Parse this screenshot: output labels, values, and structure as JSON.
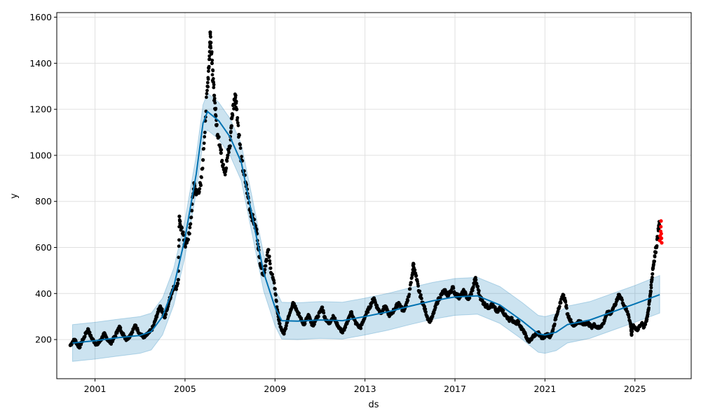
{
  "chart_data": {
    "type": "scatter",
    "title": "",
    "xlabel": "ds",
    "ylabel": "y",
    "xlim": [
      1999.3,
      2027.5
    ],
    "ylim": [
      30,
      1620
    ],
    "grid": true,
    "x_ticks": [
      {
        "value": 2001,
        "label": "2001"
      },
      {
        "value": 2005,
        "label": "2005"
      },
      {
        "value": 2009,
        "label": "2009"
      },
      {
        "value": 2013,
        "label": "2013"
      },
      {
        "value": 2017,
        "label": "2017"
      },
      {
        "value": 2021,
        "label": "2021"
      },
      {
        "value": 2025,
        "label": "2025"
      }
    ],
    "y_ticks": [
      {
        "value": 200,
        "label": "200"
      },
      {
        "value": 400,
        "label": "400"
      },
      {
        "value": 600,
        "label": "600"
      },
      {
        "value": 800,
        "label": "800"
      },
      {
        "value": 1000,
        "label": "1000"
      },
      {
        "value": 1200,
        "label": "1200"
      },
      {
        "value": 1400,
        "label": "1400"
      },
      {
        "value": 1600,
        "label": "1600"
      }
    ],
    "colors": {
      "observed": "#000000",
      "recent": "#ff0000",
      "forecast_line": "#0072B2",
      "interval_fill": "#0072B2"
    },
    "forecast": [
      {
        "x": 2000.0,
        "yhat": 185,
        "lower": 105,
        "upper": 265
      },
      {
        "x": 2001.0,
        "yhat": 195,
        "lower": 115,
        "upper": 275
      },
      {
        "x": 2002.0,
        "yhat": 208,
        "lower": 128,
        "upper": 288
      },
      {
        "x": 2003.0,
        "yhat": 218,
        "lower": 140,
        "upper": 300
      },
      {
        "x": 2003.5,
        "yhat": 235,
        "lower": 155,
        "upper": 315
      },
      {
        "x": 2004.0,
        "yhat": 300,
        "lower": 220,
        "upper": 380
      },
      {
        "x": 2004.5,
        "yhat": 430,
        "lower": 350,
        "upper": 510
      },
      {
        "x": 2005.0,
        "yhat": 640,
        "lower": 560,
        "upper": 720
      },
      {
        "x": 2005.5,
        "yhat": 920,
        "lower": 840,
        "upper": 1000
      },
      {
        "x": 2005.8,
        "yhat": 1140,
        "lower": 1060,
        "upper": 1220
      },
      {
        "x": 2006.0,
        "yhat": 1190,
        "lower": 1110,
        "upper": 1270
      },
      {
        "x": 2006.5,
        "yhat": 1150,
        "lower": 1070,
        "upper": 1230
      },
      {
        "x": 2007.0,
        "yhat": 1080,
        "lower": 1000,
        "upper": 1160
      },
      {
        "x": 2007.5,
        "yhat": 970,
        "lower": 890,
        "upper": 1050
      },
      {
        "x": 2008.0,
        "yhat": 730,
        "lower": 650,
        "upper": 810
      },
      {
        "x": 2008.5,
        "yhat": 490,
        "lower": 410,
        "upper": 570
      },
      {
        "x": 2009.0,
        "yhat": 340,
        "lower": 260,
        "upper": 420
      },
      {
        "x": 2009.3,
        "yhat": 282,
        "lower": 202,
        "upper": 362
      },
      {
        "x": 2010.0,
        "yhat": 280,
        "lower": 200,
        "upper": 360
      },
      {
        "x": 2011.0,
        "yhat": 285,
        "lower": 205,
        "upper": 365
      },
      {
        "x": 2012.0,
        "yhat": 282,
        "lower": 202,
        "upper": 362
      },
      {
        "x": 2013.0,
        "yhat": 300,
        "lower": 220,
        "upper": 380
      },
      {
        "x": 2014.0,
        "yhat": 320,
        "lower": 240,
        "upper": 400
      },
      {
        "x": 2015.0,
        "yhat": 345,
        "lower": 265,
        "upper": 425
      },
      {
        "x": 2016.0,
        "yhat": 368,
        "lower": 288,
        "upper": 448
      },
      {
        "x": 2017.0,
        "yhat": 385,
        "lower": 305,
        "upper": 465
      },
      {
        "x": 2018.0,
        "yhat": 390,
        "lower": 310,
        "upper": 470
      },
      {
        "x": 2019.0,
        "yhat": 350,
        "lower": 270,
        "upper": 430
      },
      {
        "x": 2020.0,
        "yhat": 280,
        "lower": 200,
        "upper": 360
      },
      {
        "x": 2020.7,
        "yhat": 225,
        "lower": 145,
        "upper": 305
      },
      {
        "x": 2021.0,
        "yhat": 220,
        "lower": 140,
        "upper": 300
      },
      {
        "x": 2021.5,
        "yhat": 232,
        "lower": 152,
        "upper": 312
      },
      {
        "x": 2022.0,
        "yhat": 265,
        "lower": 185,
        "upper": 345
      },
      {
        "x": 2023.0,
        "yhat": 285,
        "lower": 205,
        "upper": 365
      },
      {
        "x": 2024.0,
        "yhat": 320,
        "lower": 240,
        "upper": 400
      },
      {
        "x": 2025.0,
        "yhat": 355,
        "lower": 275,
        "upper": 435
      },
      {
        "x": 2026.1,
        "yhat": 395,
        "lower": 315,
        "upper": 478
      }
    ],
    "observed": [
      [
        1999.9,
        175
      ],
      [
        2000.0,
        190
      ],
      [
        2000.1,
        200
      ],
      [
        2000.2,
        182
      ],
      [
        2000.3,
        165
      ],
      [
        2000.4,
        188
      ],
      [
        2000.5,
        205
      ],
      [
        2000.6,
        230
      ],
      [
        2000.7,
        245
      ],
      [
        2000.8,
        215
      ],
      [
        2000.9,
        200
      ],
      [
        2001.0,
        185
      ],
      [
        2001.1,
        178
      ],
      [
        2001.2,
        190
      ],
      [
        2001.3,
        205
      ],
      [
        2001.4,
        225
      ],
      [
        2001.5,
        210
      ],
      [
        2001.6,
        195
      ],
      [
        2001.7,
        185
      ],
      [
        2001.8,
        200
      ],
      [
        2001.9,
        215
      ],
      [
        2002.0,
        240
      ],
      [
        2002.1,
        255
      ],
      [
        2002.2,
        230
      ],
      [
        2002.3,
        215
      ],
      [
        2002.4,
        200
      ],
      [
        2002.5,
        210
      ],
      [
        2002.6,
        225
      ],
      [
        2002.7,
        245
      ],
      [
        2002.8,
        262
      ],
      [
        2002.9,
        240
      ],
      [
        2003.0,
        225
      ],
      [
        2003.1,
        215
      ],
      [
        2003.2,
        210
      ],
      [
        2003.3,
        220
      ],
      [
        2003.4,
        230
      ],
      [
        2003.5,
        240
      ],
      [
        2003.6,
        260
      ],
      [
        2003.7,
        290
      ],
      [
        2003.8,
        320
      ],
      [
        2003.9,
        345
      ],
      [
        2004.0,
        320
      ],
      [
        2004.1,
        295
      ],
      [
        2004.2,
        330
      ],
      [
        2004.3,
        370
      ],
      [
        2004.4,
        400
      ],
      [
        2004.5,
        430
      ],
      [
        2004.6,
        420
      ],
      [
        2004.7,
        460
      ],
      [
        2004.75,
        735
      ],
      [
        2004.8,
        690
      ],
      [
        2004.9,
        660
      ],
      [
        2005.0,
        610
      ],
      [
        2005.1,
        630
      ],
      [
        2005.2,
        660
      ],
      [
        2005.3,
        760
      ],
      [
        2005.4,
        880
      ],
      [
        2005.5,
        830
      ],
      [
        2005.6,
        850
      ],
      [
        2005.7,
        870
      ],
      [
        2005.8,
        980
      ],
      [
        2005.9,
        1150
      ],
      [
        2006.0,
        1300
      ],
      [
        2006.05,
        1380
      ],
      [
        2006.1,
        1450
      ],
      [
        2006.12,
        1535
      ],
      [
        2006.15,
        1490
      ],
      [
        2006.2,
        1400
      ],
      [
        2006.25,
        1320
      ],
      [
        2006.3,
        1260
      ],
      [
        2006.35,
        1200
      ],
      [
        2006.4,
        1130
      ],
      [
        2006.5,
        1080
      ],
      [
        2006.6,
        1010
      ],
      [
        2006.7,
        960
      ],
      [
        2006.8,
        930
      ],
      [
        2006.9,
        1000
      ],
      [
        2007.0,
        1040
      ],
      [
        2007.05,
        1120
      ],
      [
        2007.1,
        1180
      ],
      [
        2007.2,
        1240
      ],
      [
        2007.25,
        1260
      ],
      [
        2007.3,
        1200
      ],
      [
        2007.4,
        1090
      ],
      [
        2007.5,
        980
      ],
      [
        2007.6,
        930
      ],
      [
        2007.7,
        880
      ],
      [
        2007.8,
        820
      ],
      [
        2007.9,
        760
      ],
      [
        2008.0,
        730
      ],
      [
        2008.1,
        700
      ],
      [
        2008.2,
        660
      ],
      [
        2008.3,
        560
      ],
      [
        2008.4,
        510
      ],
      [
        2008.5,
        480
      ],
      [
        2008.6,
        540
      ],
      [
        2008.7,
        590
      ],
      [
        2008.8,
        510
      ],
      [
        2008.9,
        470
      ],
      [
        2009.0,
        420
      ],
      [
        2009.1,
        330
      ],
      [
        2009.15,
        300
      ],
      [
        2009.2,
        270
      ],
      [
        2009.3,
        240
      ],
      [
        2009.4,
        225
      ],
      [
        2009.5,
        260
      ],
      [
        2009.6,
        300
      ],
      [
        2009.7,
        330
      ],
      [
        2009.8,
        360
      ],
      [
        2009.9,
        345
      ],
      [
        2010.0,
        320
      ],
      [
        2010.1,
        300
      ],
      [
        2010.2,
        280
      ],
      [
        2010.3,
        265
      ],
      [
        2010.4,
        290
      ],
      [
        2010.5,
        305
      ],
      [
        2010.6,
        275
      ],
      [
        2010.7,
        260
      ],
      [
        2010.8,
        285
      ],
      [
        2010.9,
        300
      ],
      [
        2011.0,
        320
      ],
      [
        2011.1,
        340
      ],
      [
        2011.2,
        300
      ],
      [
        2011.3,
        280
      ],
      [
        2011.4,
        270
      ],
      [
        2011.5,
        285
      ],
      [
        2011.6,
        300
      ],
      [
        2011.7,
        280
      ],
      [
        2011.8,
        260
      ],
      [
        2011.9,
        245
      ],
      [
        2012.0,
        230
      ],
      [
        2012.1,
        250
      ],
      [
        2012.2,
        270
      ],
      [
        2012.3,
        300
      ],
      [
        2012.4,
        320
      ],
      [
        2012.5,
        290
      ],
      [
        2012.6,
        270
      ],
      [
        2012.7,
        260
      ],
      [
        2012.8,
        250
      ],
      [
        2012.9,
        275
      ],
      [
        2013.0,
        300
      ],
      [
        2013.1,
        320
      ],
      [
        2013.2,
        340
      ],
      [
        2013.3,
        360
      ],
      [
        2013.4,
        380
      ],
      [
        2013.5,
        350
      ],
      [
        2013.6,
        330
      ],
      [
        2013.7,
        315
      ],
      [
        2013.8,
        330
      ],
      [
        2013.9,
        345
      ],
      [
        2014.0,
        320
      ],
      [
        2014.1,
        305
      ],
      [
        2014.2,
        315
      ],
      [
        2014.3,
        330
      ],
      [
        2014.4,
        345
      ],
      [
        2014.5,
        360
      ],
      [
        2014.6,
        340
      ],
      [
        2014.7,
        325
      ],
      [
        2014.8,
        345
      ],
      [
        2014.9,
        370
      ],
      [
        2015.0,
        420
      ],
      [
        2015.1,
        480
      ],
      [
        2015.15,
        530
      ],
      [
        2015.2,
        500
      ],
      [
        2015.3,
        460
      ],
      [
        2015.4,
        410
      ],
      [
        2015.5,
        380
      ],
      [
        2015.6,
        350
      ],
      [
        2015.7,
        320
      ],
      [
        2015.8,
        290
      ],
      [
        2015.9,
        280
      ],
      [
        2016.0,
        300
      ],
      [
        2016.1,
        330
      ],
      [
        2016.2,
        360
      ],
      [
        2016.3,
        380
      ],
      [
        2016.4,
        395
      ],
      [
        2016.5,
        410
      ],
      [
        2016.6,
        405
      ],
      [
        2016.7,
        390
      ],
      [
        2016.8,
        410
      ],
      [
        2016.9,
        425
      ],
      [
        2017.0,
        400
      ],
      [
        2017.1,
        390
      ],
      [
        2017.2,
        385
      ],
      [
        2017.3,
        395
      ],
      [
        2017.4,
        410
      ],
      [
        2017.5,
        390
      ],
      [
        2017.6,
        375
      ],
      [
        2017.7,
        395
      ],
      [
        2017.8,
        425
      ],
      [
        2017.9,
        465
      ],
      [
        2018.0,
        430
      ],
      [
        2018.1,
        390
      ],
      [
        2018.2,
        370
      ],
      [
        2018.3,
        355
      ],
      [
        2018.4,
        345
      ],
      [
        2018.5,
        340
      ],
      [
        2018.6,
        350
      ],
      [
        2018.7,
        345
      ],
      [
        2018.8,
        330
      ],
      [
        2018.9,
        320
      ],
      [
        2019.0,
        340
      ],
      [
        2019.1,
        330
      ],
      [
        2019.2,
        310
      ],
      [
        2019.3,
        300
      ],
      [
        2019.4,
        285
      ],
      [
        2019.5,
        295
      ],
      [
        2019.6,
        275
      ],
      [
        2019.7,
        270
      ],
      [
        2019.8,
        280
      ],
      [
        2019.9,
        255
      ],
      [
        2020.0,
        245
      ],
      [
        2020.1,
        230
      ],
      [
        2020.2,
        205
      ],
      [
        2020.3,
        190
      ],
      [
        2020.4,
        200
      ],
      [
        2020.5,
        215
      ],
      [
        2020.6,
        225
      ],
      [
        2020.7,
        230
      ],
      [
        2020.8,
        215
      ],
      [
        2020.9,
        205
      ],
      [
        2021.0,
        215
      ],
      [
        2021.1,
        225
      ],
      [
        2021.2,
        210
      ],
      [
        2021.3,
        225
      ],
      [
        2021.4,
        260
      ],
      [
        2021.5,
        300
      ],
      [
        2021.6,
        335
      ],
      [
        2021.7,
        360
      ],
      [
        2021.8,
        395
      ],
      [
        2021.9,
        370
      ],
      [
        2022.0,
        310
      ],
      [
        2022.1,
        290
      ],
      [
        2022.2,
        270
      ],
      [
        2022.3,
        260
      ],
      [
        2022.4,
        270
      ],
      [
        2022.5,
        280
      ],
      [
        2022.6,
        275
      ],
      [
        2022.7,
        265
      ],
      [
        2022.8,
        270
      ],
      [
        2022.9,
        275
      ],
      [
        2023.0,
        260
      ],
      [
        2023.1,
        255
      ],
      [
        2023.2,
        265
      ],
      [
        2023.3,
        255
      ],
      [
        2023.4,
        250
      ],
      [
        2023.5,
        260
      ],
      [
        2023.6,
        270
      ],
      [
        2023.7,
        300
      ],
      [
        2023.8,
        320
      ],
      [
        2023.9,
        310
      ],
      [
        2024.0,
        330
      ],
      [
        2024.1,
        350
      ],
      [
        2024.2,
        370
      ],
      [
        2024.3,
        395
      ],
      [
        2024.4,
        380
      ],
      [
        2024.5,
        350
      ],
      [
        2024.6,
        330
      ],
      [
        2024.7,
        310
      ],
      [
        2024.8,
        270
      ],
      [
        2024.85,
        220
      ],
      [
        2024.9,
        260
      ],
      [
        2025.0,
        250
      ],
      [
        2025.1,
        240
      ],
      [
        2025.2,
        260
      ],
      [
        2025.3,
        270
      ],
      [
        2025.4,
        255
      ],
      [
        2025.5,
        280
      ],
      [
        2025.55,
        300
      ],
      [
        2025.6,
        330
      ],
      [
        2025.65,
        370
      ],
      [
        2025.7,
        410
      ],
      [
        2025.75,
        460
      ],
      [
        2025.8,
        510
      ],
      [
        2025.85,
        540
      ],
      [
        2025.9,
        580
      ],
      [
        2025.95,
        600
      ],
      [
        2026.0,
        640
      ],
      [
        2026.05,
        680
      ],
      [
        2026.08,
        700
      ]
    ],
    "recent": [
      [
        2026.1,
        630
      ],
      [
        2026.12,
        650
      ],
      [
        2026.14,
        670
      ],
      [
        2026.15,
        690
      ],
      [
        2026.16,
        715
      ],
      [
        2026.17,
        660
      ],
      [
        2026.18,
        640
      ],
      [
        2026.19,
        620
      ]
    ]
  }
}
